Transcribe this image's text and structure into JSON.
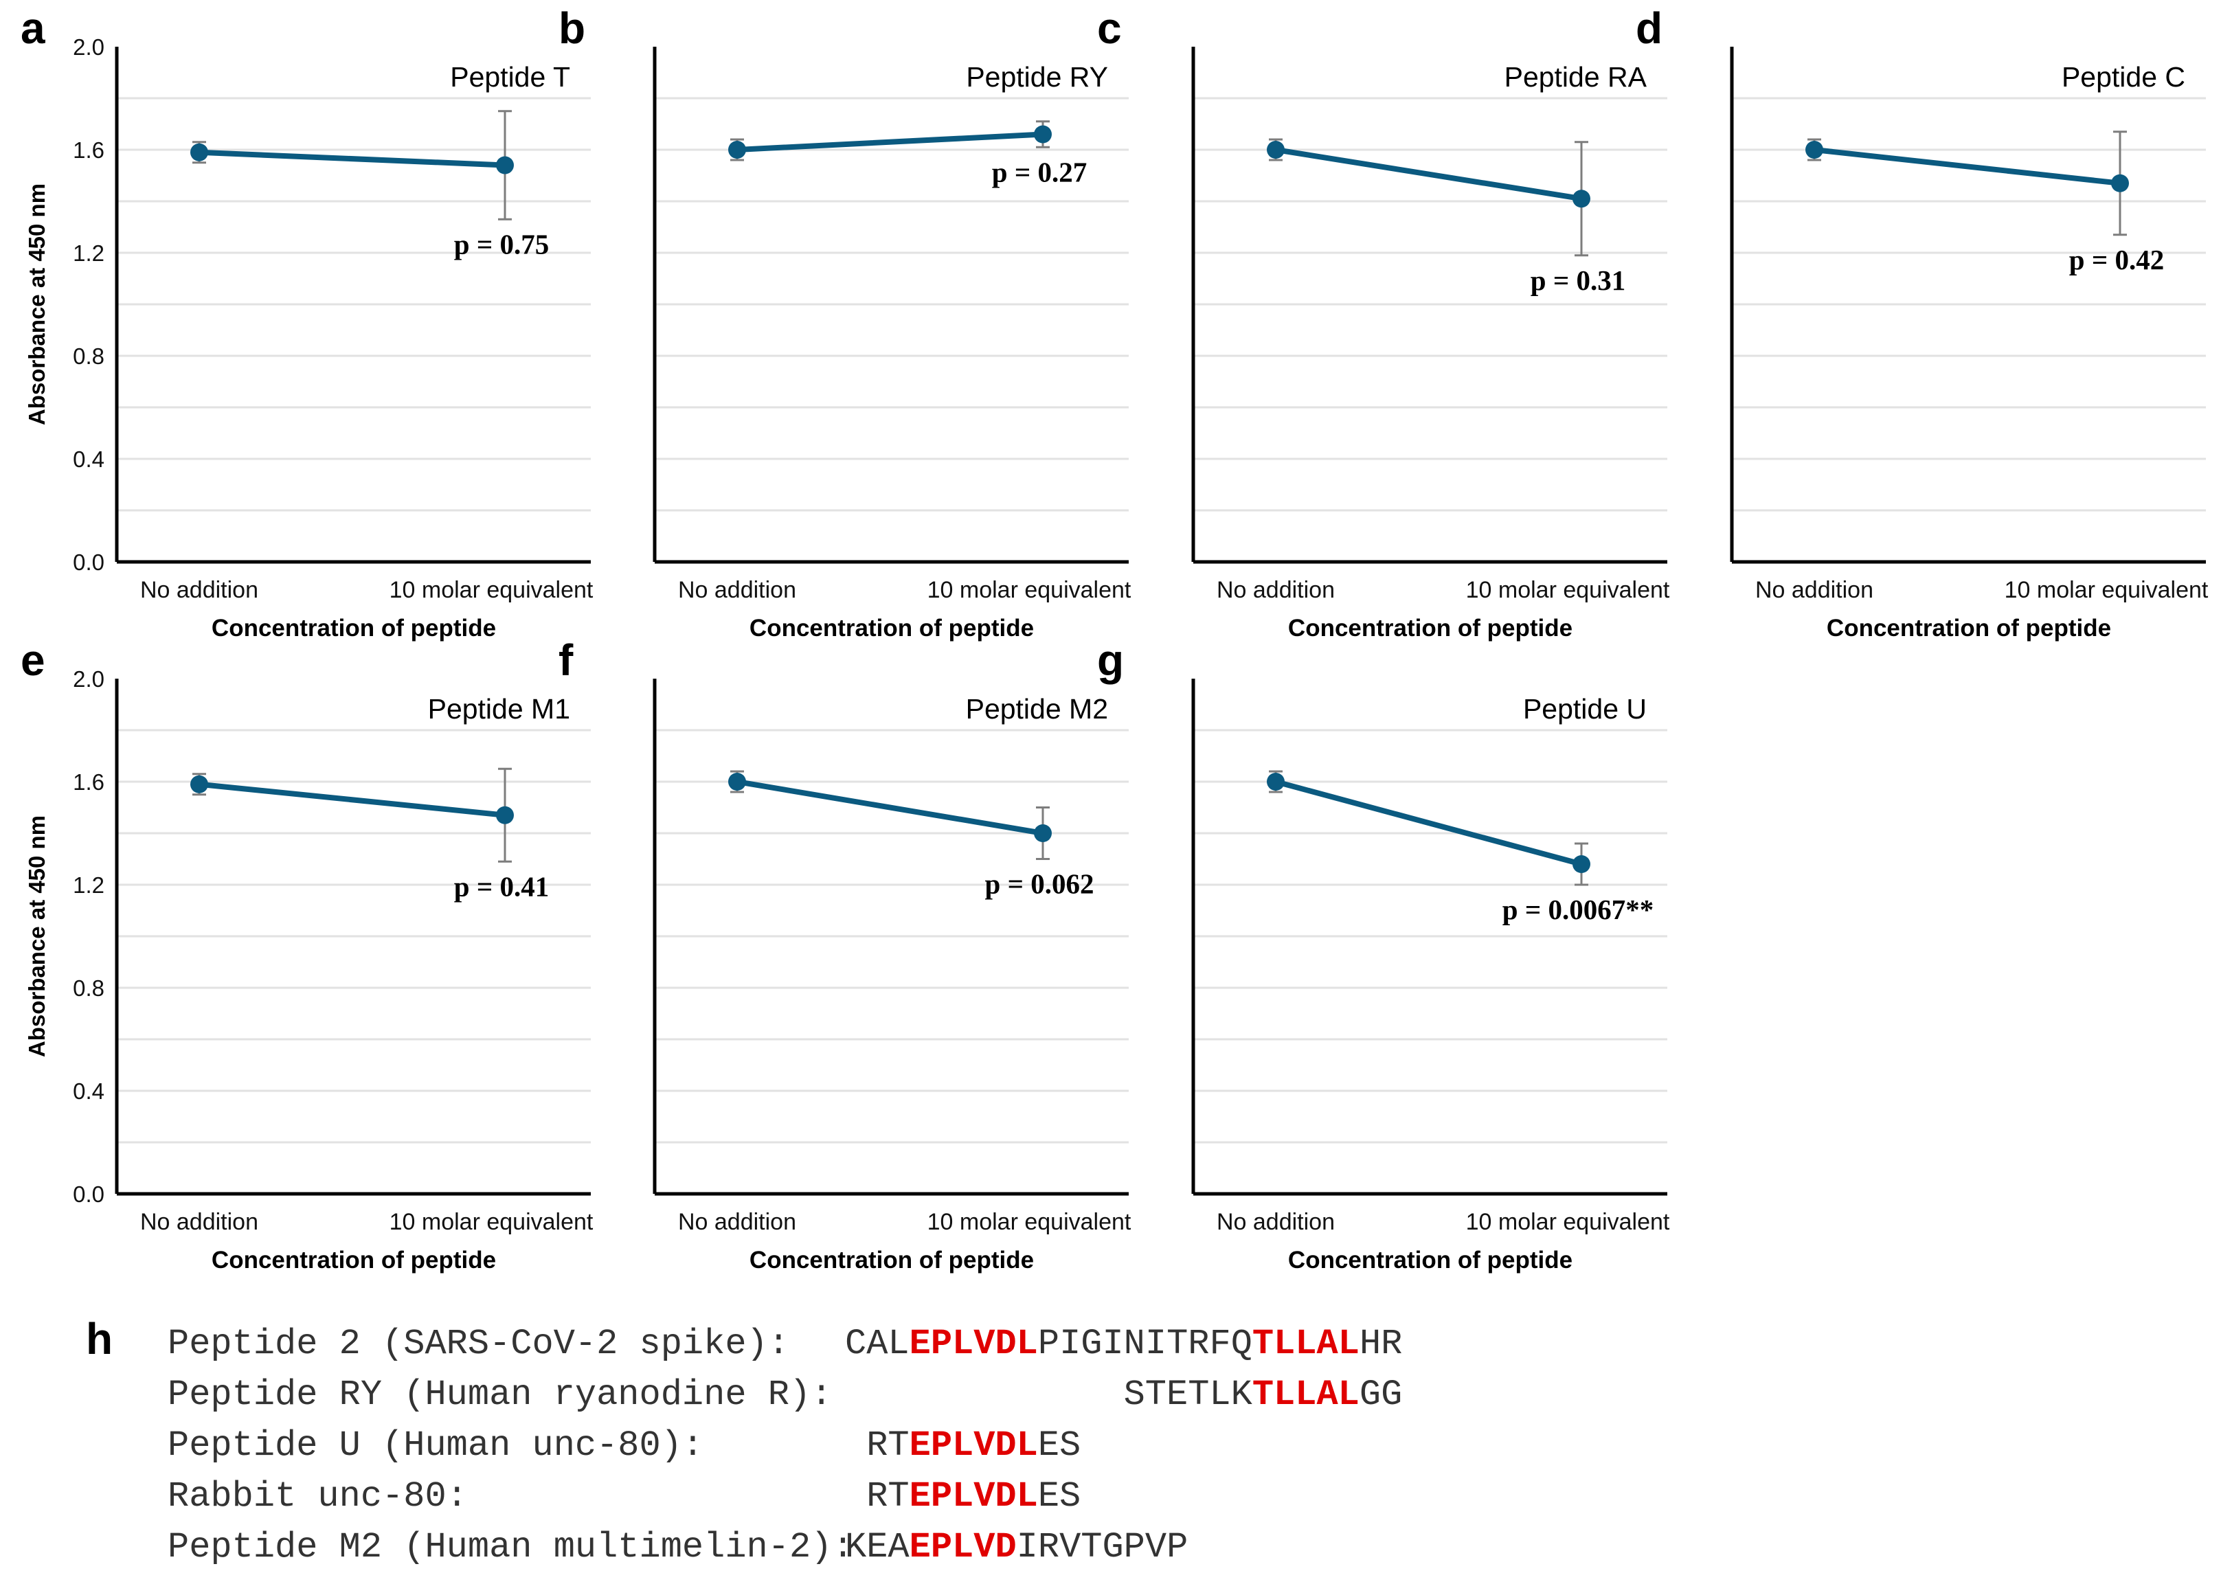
{
  "figure": {
    "panels": [
      {
        "letter": "a",
        "title": "Peptide T",
        "p_text": "p = 0.75",
        "row": 0,
        "col": 0,
        "show_yaxis_labels": true
      },
      {
        "letter": "b",
        "title": "Peptide RY",
        "p_text": "p = 0.27",
        "row": 0,
        "col": 1,
        "show_yaxis_labels": false
      },
      {
        "letter": "c",
        "title": "Peptide RA",
        "p_text": "p = 0.31",
        "row": 0,
        "col": 2,
        "show_yaxis_labels": false
      },
      {
        "letter": "d",
        "title": "Peptide C",
        "p_text": "p = 0.42",
        "row": 0,
        "col": 3,
        "show_yaxis_labels": false
      },
      {
        "letter": "e",
        "title": "Peptide M1",
        "p_text": "p = 0.41",
        "row": 1,
        "col": 0,
        "show_yaxis_labels": true
      },
      {
        "letter": "f",
        "title": "Peptide M2",
        "p_text": "p = 0.062",
        "row": 1,
        "col": 1,
        "show_yaxis_labels": false
      },
      {
        "letter": "g",
        "title": "Peptide U",
        "p_text": "p = 0.0067**",
        "row": 1,
        "col": 2,
        "show_yaxis_labels": false
      }
    ],
    "xlabel": "Concentration of peptide",
    "ylabel": "Absorbance at 450 nm",
    "yticks": [
      "0.0",
      "0.4",
      "0.8",
      "1.2",
      "1.6",
      "2.0"
    ],
    "categories": [
      "No addition",
      "10 molar equivalent"
    ],
    "colors": {
      "series": "#0b5a80",
      "error_bar": "#7d7d7d",
      "grid": "#e2e2e2",
      "highlight": "#e00000"
    }
  },
  "chart_data": [
    {
      "type": "line",
      "title": "Peptide T",
      "categories": [
        "No addition",
        "10 molar equivalent"
      ],
      "values": [
        1.59,
        1.54
      ],
      "errors": [
        0.04,
        0.21
      ],
      "annotation": "p = 0.75",
      "xlabel": "Concentration of peptide",
      "ylabel": "Absorbance at 450 nm",
      "ylim": [
        0,
        2.0
      ],
      "grid": true
    },
    {
      "type": "line",
      "title": "Peptide RY",
      "categories": [
        "No addition",
        "10 molar equivalent"
      ],
      "values": [
        1.6,
        1.66
      ],
      "errors": [
        0.04,
        0.05
      ],
      "annotation": "p = 0.27",
      "xlabel": "Concentration of peptide",
      "ylim": [
        0,
        2.0
      ],
      "grid": true
    },
    {
      "type": "line",
      "title": "Peptide RA",
      "categories": [
        "No addition",
        "10 molar equivalent"
      ],
      "values": [
        1.6,
        1.41
      ],
      "errors": [
        0.04,
        0.22
      ],
      "annotation": "p = 0.31",
      "xlabel": "Concentration of peptide",
      "ylim": [
        0,
        2.0
      ],
      "grid": true
    },
    {
      "type": "line",
      "title": "Peptide C",
      "categories": [
        "No addition",
        "10 molar equivalent"
      ],
      "values": [
        1.6,
        1.47
      ],
      "errors": [
        0.04,
        0.2
      ],
      "annotation": "p = 0.42",
      "xlabel": "Concentration of peptide",
      "ylim": [
        0,
        2.0
      ],
      "grid": true
    },
    {
      "type": "line",
      "title": "Peptide M1",
      "categories": [
        "No addition",
        "10 molar equivalent"
      ],
      "values": [
        1.59,
        1.47
      ],
      "errors": [
        0.04,
        0.18
      ],
      "annotation": "p = 0.41",
      "xlabel": "Concentration of peptide",
      "ylabel": "Absorbance at 450 nm",
      "ylim": [
        0,
        2.0
      ],
      "grid": true
    },
    {
      "type": "line",
      "title": "Peptide M2",
      "categories": [
        "No addition",
        "10 molar equivalent"
      ],
      "values": [
        1.6,
        1.4
      ],
      "errors": [
        0.04,
        0.1
      ],
      "annotation": "p = 0.062",
      "xlabel": "Concentration of peptide",
      "ylim": [
        0,
        2.0
      ],
      "grid": true
    },
    {
      "type": "line",
      "title": "Peptide U",
      "categories": [
        "No addition",
        "10 molar equivalent"
      ],
      "values": [
        1.6,
        1.28
      ],
      "errors": [
        0.04,
        0.08
      ],
      "annotation": "p = 0.0067**",
      "xlabel": "Concentration of peptide",
      "ylim": [
        0,
        2.0
      ],
      "grid": true
    }
  ],
  "sequences": {
    "letter": "h",
    "rows": [
      {
        "label": "Peptide 2 (SARS-CoV-2 spike):",
        "pre": "CAL",
        "hl1": "EPLVDL",
        "mid": "PIGINITRFQ",
        "hl2": "TLLAL",
        "post": "HR",
        "offset_chars": 0
      },
      {
        "label": "Peptide RY (Human ryanodine R):",
        "pre": "STETLK",
        "hl1": "TLLAL",
        "mid": "",
        "hl2": "",
        "post": "GG",
        "offset_chars": 13
      },
      {
        "label": "Peptide U (Human unc-80):",
        "pre": "RT",
        "hl1": "EPLVDL",
        "mid": "ES",
        "hl2": "",
        "post": "",
        "offset_chars": 1
      },
      {
        "label": "Rabbit unc-80:",
        "pre": "RT",
        "hl1": "EPLVDL",
        "mid": "ES",
        "hl2": "",
        "post": "",
        "offset_chars": 1
      },
      {
        "label": "Peptide M2 (Human multimelin-2):",
        "pre": "KEA",
        "hl1": "EPLVD",
        "mid": "IRVTGPVP",
        "hl2": "",
        "post": "",
        "offset_chars": 0
      }
    ]
  }
}
